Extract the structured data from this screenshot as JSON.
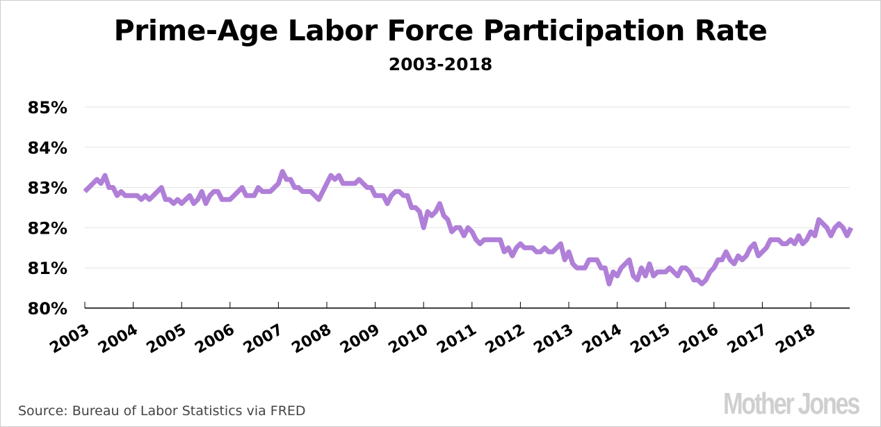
{
  "chart_data": {
    "type": "line",
    "title": "Prime-Age Labor Force Participation Rate",
    "subtitle": "2003-2018",
    "xlabel": "",
    "ylabel": "",
    "ylim": [
      80,
      85
    ],
    "yticks": [
      80,
      81,
      82,
      83,
      84,
      85
    ],
    "ytick_labels": [
      "80%",
      "81%",
      "82%",
      "83%",
      "84%",
      "85%"
    ],
    "xticks": [
      "2003",
      "2004",
      "2005",
      "2006",
      "2007",
      "2008",
      "2009",
      "2010",
      "2011",
      "2012",
      "2013",
      "2014",
      "2015",
      "2016",
      "2017",
      "2018"
    ],
    "grid": "horizontal",
    "legend": "none",
    "color": "#b07fd8",
    "series": [
      {
        "name": "Prime-Age LFPR",
        "start": "2003-01",
        "frequency": "monthly",
        "values": [
          82.9,
          83.0,
          83.1,
          83.2,
          83.1,
          83.3,
          83.0,
          83.0,
          82.8,
          82.9,
          82.8,
          82.8,
          82.8,
          82.8,
          82.7,
          82.8,
          82.7,
          82.8,
          82.9,
          83.0,
          82.7,
          82.7,
          82.6,
          82.7,
          82.6,
          82.7,
          82.8,
          82.6,
          82.7,
          82.9,
          82.6,
          82.8,
          82.9,
          82.9,
          82.7,
          82.7,
          82.7,
          82.8,
          82.9,
          83.0,
          82.8,
          82.8,
          82.8,
          83.0,
          82.9,
          82.9,
          82.9,
          83.0,
          83.1,
          83.4,
          83.2,
          83.2,
          83.0,
          83.0,
          82.9,
          82.9,
          82.9,
          82.8,
          82.7,
          82.9,
          83.1,
          83.3,
          83.2,
          83.3,
          83.1,
          83.1,
          83.1,
          83.1,
          83.2,
          83.1,
          83.0,
          83.0,
          82.8,
          82.8,
          82.8,
          82.6,
          82.8,
          82.9,
          82.9,
          82.8,
          82.8,
          82.5,
          82.5,
          82.4,
          82.0,
          82.4,
          82.3,
          82.4,
          82.6,
          82.3,
          82.2,
          81.9,
          82.0,
          82.0,
          81.8,
          82.0,
          81.9,
          81.7,
          81.6,
          81.7,
          81.7,
          81.7,
          81.7,
          81.7,
          81.4,
          81.5,
          81.3,
          81.5,
          81.6,
          81.5,
          81.5,
          81.5,
          81.4,
          81.4,
          81.5,
          81.4,
          81.4,
          81.5,
          81.6,
          81.2,
          81.4,
          81.1,
          81.0,
          81.0,
          81.0,
          81.2,
          81.2,
          81.2,
          81.0,
          81.0,
          80.6,
          80.9,
          80.8,
          81.0,
          81.1,
          81.2,
          80.8,
          80.7,
          81.0,
          80.8,
          81.1,
          80.8,
          80.9,
          80.9,
          80.9,
          81.0,
          80.9,
          80.8,
          81.0,
          81.0,
          80.9,
          80.7,
          80.7,
          80.6,
          80.7,
          80.9,
          81.0,
          81.2,
          81.2,
          81.4,
          81.2,
          81.1,
          81.3,
          81.2,
          81.3,
          81.5,
          81.6,
          81.3,
          81.4,
          81.5,
          81.7,
          81.7,
          81.7,
          81.6,
          81.6,
          81.7,
          81.6,
          81.8,
          81.6,
          81.7,
          81.9,
          81.8,
          82.2,
          82.1,
          82.0,
          81.8,
          82.0,
          82.1,
          82.0,
          81.8,
          82.0
        ]
      }
    ]
  },
  "footer": {
    "source": "Source: Bureau of Labor Statistics via FRED",
    "brand": "Mother Jones"
  }
}
